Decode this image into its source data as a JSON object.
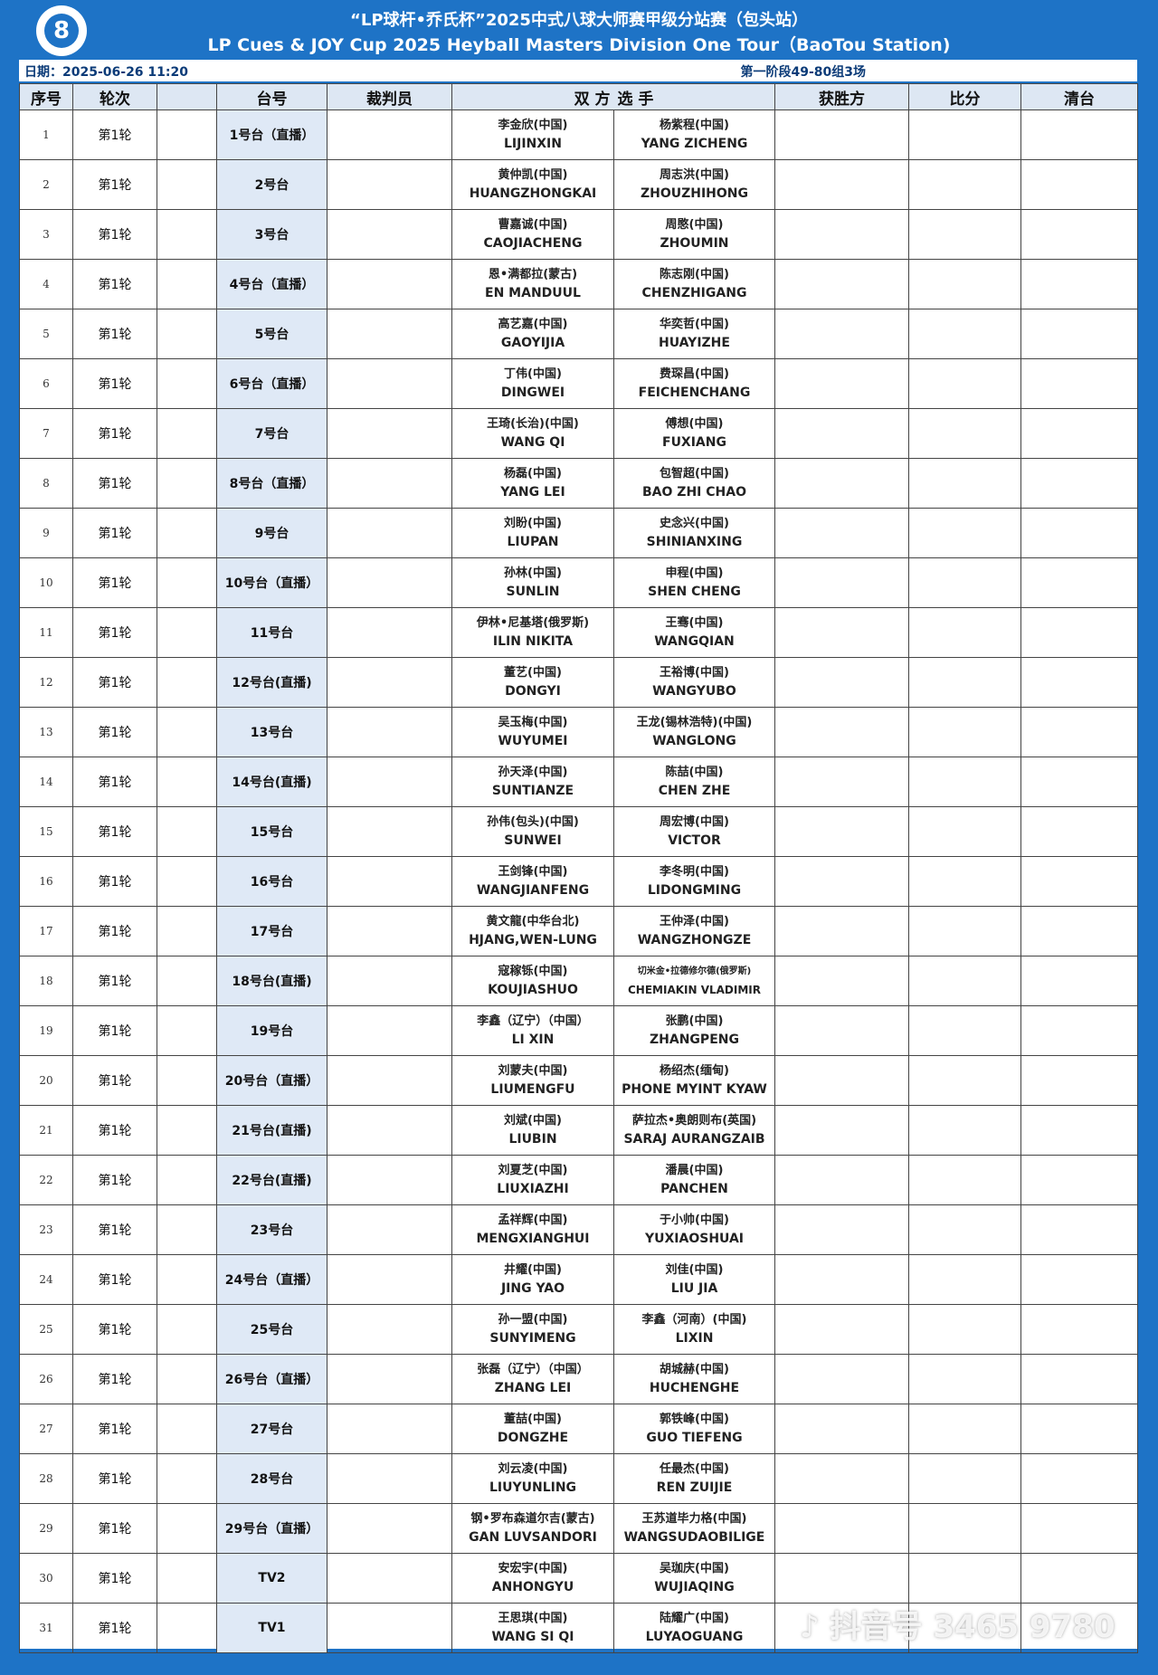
{
  "header": {
    "title_cn": "“LP球杆•乔氏杯”2025中式八球大师赛甲级分站赛（包头站）",
    "title_en": "LP Cues & JOY Cup 2025 Heyball Masters Division One Tour（BaoTou Station)",
    "logo_text": "8"
  },
  "info": {
    "date": "日期：2025-06-26 11:20",
    "stage": "第一阶段49-80组3场"
  },
  "columns": [
    "序号",
    "轮次",
    "",
    "台号",
    "裁判员",
    "双 方",
    "选 手",
    "获胜方",
    "比分",
    "清台"
  ],
  "colors": {
    "frame": "#1e73c6",
    "table_col": "#dfe9f6"
  },
  "watermark": "抖音号 3465 9780",
  "rows": [
    {
      "no": "1",
      "round": "第1轮",
      "table": "1号台（直播）",
      "p1_cn": "李金欣(中国)",
      "p1_en": "LIJINXIN",
      "p2_cn": "杨紫程(中国)",
      "p2_en": "YANG ZICHENG"
    },
    {
      "no": "2",
      "round": "第1轮",
      "table": "2号台",
      "p1_cn": "黄仲凯(中国)",
      "p1_en": "HUANGZHONGKAI",
      "p2_cn": "周志洪(中国)",
      "p2_en": "ZHOUZHIHONG"
    },
    {
      "no": "3",
      "round": "第1轮",
      "table": "3号台",
      "p1_cn": "曹嘉诚(中国)",
      "p1_en": "CAOJIACHENG",
      "p2_cn": "周愍(中国)",
      "p2_en": "ZHOUMIN"
    },
    {
      "no": "4",
      "round": "第1轮",
      "table": "4号台（直播）",
      "p1_cn": "恩•满都拉(蒙古)",
      "p1_en": "EN MANDUUL",
      "p2_cn": "陈志刚(中国)",
      "p2_en": "CHENZHIGANG"
    },
    {
      "no": "5",
      "round": "第1轮",
      "table": "5号台",
      "p1_cn": "高艺嘉(中国)",
      "p1_en": "GAOYIJIA",
      "p2_cn": "华奕哲(中国)",
      "p2_en": "HUAYIZHE"
    },
    {
      "no": "6",
      "round": "第1轮",
      "table": "6号台（直播）",
      "p1_cn": "丁伟(中国)",
      "p1_en": "DINGWEI",
      "p2_cn": "费琛昌(中国)",
      "p2_en": "FEICHENCHANG"
    },
    {
      "no": "7",
      "round": "第1轮",
      "table": "7号台",
      "p1_cn": "王琦(长治)(中国)",
      "p1_en": "WANG QI",
      "p2_cn": "傅想(中国)",
      "p2_en": "FUXIANG"
    },
    {
      "no": "8",
      "round": "第1轮",
      "table": "8号台（直播）",
      "p1_cn": "杨磊(中国)",
      "p1_en": "YANG LEI",
      "p2_cn": "包智超(中国)",
      "p2_en": "BAO ZHI CHAO"
    },
    {
      "no": "9",
      "round": "第1轮",
      "table": "9号台",
      "p1_cn": "刘盼(中国)",
      "p1_en": "LIUPAN",
      "p2_cn": "史念兴(中国)",
      "p2_en": "SHINIANXING"
    },
    {
      "no": "10",
      "round": "第1轮",
      "table": "10号台（直播）",
      "p1_cn": "孙林(中国)",
      "p1_en": "SUNLIN",
      "p2_cn": "申程(中国)",
      "p2_en": "SHEN CHENG"
    },
    {
      "no": "11",
      "round": "第1轮",
      "table": "11号台",
      "p1_cn": "伊林•尼基塔(俄罗斯)",
      "p1_en": "ILIN NIKITA",
      "p2_cn": "王骞(中国)",
      "p2_en": "WANGQIAN"
    },
    {
      "no": "12",
      "round": "第1轮",
      "table": "12号台(直播)",
      "p1_cn": "董艺(中国)",
      "p1_en": "DONGYI",
      "p2_cn": "王裕博(中国)",
      "p2_en": "WANGYUBO"
    },
    {
      "no": "13",
      "round": "第1轮",
      "table": "13号台",
      "p1_cn": "吴玉梅(中国)",
      "p1_en": "WUYUMEI",
      "p2_cn": "王龙(锡林浩特)(中国)",
      "p2_en": "WANGLONG"
    },
    {
      "no": "14",
      "round": "第1轮",
      "table": "14号台(直播)",
      "p1_cn": "孙天泽(中国)",
      "p1_en": "SUNTIANZE",
      "p2_cn": "陈喆(中国)",
      "p2_en": "CHEN ZHE"
    },
    {
      "no": "15",
      "round": "第1轮",
      "table": "15号台",
      "p1_cn": "孙伟(包头)(中国)",
      "p1_en": "SUNWEI",
      "p2_cn": "周宏博(中国)",
      "p2_en": "VICTOR"
    },
    {
      "no": "16",
      "round": "第1轮",
      "table": "16号台",
      "p1_cn": "王剑锋(中国)",
      "p1_en": "WANGJIANFENG",
      "p2_cn": "李冬明(中国)",
      "p2_en": "LIDONGMING"
    },
    {
      "no": "17",
      "round": "第1轮",
      "table": "17号台",
      "p1_cn": "黄文龍(中华台北)",
      "p1_en": "HJANG,WEN-LUNG",
      "p2_cn": "王仲泽(中国)",
      "p2_en": "WANGZHONGZE"
    },
    {
      "no": "18",
      "round": "第1轮",
      "table": "18号台(直播)",
      "p1_cn": "寇稼铄(中国)",
      "p1_en": "KOUJIASHUO",
      "p2_cn": "切米金•拉德修尔德(俄罗斯)",
      "p2_en": "CHEMIAKIN VLADIMIR",
      "p2_small": true
    },
    {
      "no": "19",
      "round": "第1轮",
      "table": "19号台",
      "p1_cn": "李鑫（辽宁）（中国）",
      "p1_en": "LI XIN",
      "p2_cn": "张鹏(中国)",
      "p2_en": "ZHANGPENG"
    },
    {
      "no": "20",
      "round": "第1轮",
      "table": "20号台（直播）",
      "p1_cn": "刘蒙夫(中国)",
      "p1_en": "LIUMENGFU",
      "p2_cn": "杨绍杰(缅甸)",
      "p2_en": "PHONE MYINT KYAW"
    },
    {
      "no": "21",
      "round": "第1轮",
      "table": "21号台(直播)",
      "p1_cn": "刘斌(中国)",
      "p1_en": "LIUBIN",
      "p2_cn": "萨拉杰•奥朗则布(英国)",
      "p2_en": "SARAJ AURANGZAIB"
    },
    {
      "no": "22",
      "round": "第1轮",
      "table": "22号台(直播)",
      "p1_cn": "刘夏芝(中国)",
      "p1_en": "LIUXIAZHI",
      "p2_cn": "潘晨(中国)",
      "p2_en": "PANCHEN"
    },
    {
      "no": "23",
      "round": "第1轮",
      "table": "23号台",
      "p1_cn": "孟祥辉(中国)",
      "p1_en": "MENGXIANGHUI",
      "p2_cn": "于小帅(中国)",
      "p2_en": "YUXIAOSHUAI"
    },
    {
      "no": "24",
      "round": "第1轮",
      "table": "24号台（直播）",
      "p1_cn": "井耀(中国)",
      "p1_en": "JING YAO",
      "p2_cn": "刘佳(中国)",
      "p2_en": "LIU JIA"
    },
    {
      "no": "25",
      "round": "第1轮",
      "table": "25号台",
      "p1_cn": "孙一盟(中国)",
      "p1_en": "SUNYIMENG",
      "p2_cn": "李鑫（河南）(中国)",
      "p2_en": "LIXIN"
    },
    {
      "no": "26",
      "round": "第1轮",
      "table": "26号台（直播）",
      "p1_cn": "张磊（辽宁）（中国）",
      "p1_en": "ZHANG LEI",
      "p2_cn": "胡城赫(中国)",
      "p2_en": "HUCHENGHE"
    },
    {
      "no": "27",
      "round": "第1轮",
      "table": "27号台",
      "p1_cn": "董喆(中国)",
      "p1_en": "DONGZHE",
      "p2_cn": "郭铁峰(中国)",
      "p2_en": "GUO  TIEFENG"
    },
    {
      "no": "28",
      "round": "第1轮",
      "table": "28号台",
      "p1_cn": "刘云凌(中国)",
      "p1_en": "LIUYUNLING",
      "p2_cn": "任最杰(中国)",
      "p2_en": "REN ZUIJIE"
    },
    {
      "no": "29",
      "round": "第1轮",
      "table": "29号台（直播）",
      "p1_cn": "钢•罗布森道尔吉(蒙古)",
      "p1_en": "GAN LUVSANDORI",
      "p2_cn": "王苏道毕力格(中国)",
      "p2_en": "WANGSUDAOBILIGE"
    },
    {
      "no": "30",
      "round": "第1轮",
      "table": "TV2",
      "p1_cn": "安宏宇(中国)",
      "p1_en": "ANHONGYU",
      "p2_cn": "吴珈庆(中国)",
      "p2_en": "WUJIAQING"
    },
    {
      "no": "31",
      "round": "第1轮",
      "table": "TV1",
      "p1_cn": "王思琪(中国)",
      "p1_en": "WANG SI QI",
      "p2_cn": "陆耀广(中国)",
      "p2_en": "LUYAOGUANG"
    }
  ]
}
